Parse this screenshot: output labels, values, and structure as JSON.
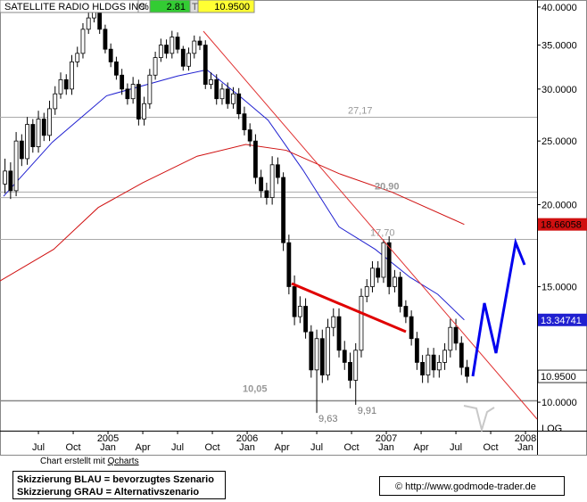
{
  "chart_data": {
    "type": "candlestick",
    "header": {
      "name": "SATELLITE RADIO HLDGS INC",
      "pct_symbol": "%",
      "change": 2.81,
      "t": "T",
      "last": {
        "value": 10.95,
        "label": "10.9500"
      }
    },
    "log_scale": true,
    "scale_label": "LOG",
    "ylim": [
      9.05,
      41.0
    ],
    "yticks": [
      {
        "value": 40,
        "label": "40.0000"
      },
      {
        "value": 35,
        "label": "35.0000"
      },
      {
        "value": 30,
        "label": "30.0000"
      },
      {
        "value": 25,
        "label": "25.0000"
      },
      {
        "value": 20,
        "label": "20.0000"
      },
      {
        "value": 15,
        "label": "15.0000"
      },
      {
        "value": 10,
        "label": "10.0000"
      }
    ],
    "xlim": [
      2004.224,
      2008.083
    ],
    "xticks": [
      {
        "value": 2004.5,
        "label": "Jul"
      },
      {
        "value": 2004.75,
        "label": "Oct"
      },
      {
        "value": 2005.0,
        "label": "Jan"
      },
      {
        "value": 2005.25,
        "label": "Apr"
      },
      {
        "value": 2005.5,
        "label": "Jul"
      },
      {
        "value": 2005.75,
        "label": "Oct"
      },
      {
        "value": 2006.0,
        "label": "Jan"
      },
      {
        "value": 2006.25,
        "label": "Apr"
      },
      {
        "value": 2006.5,
        "label": "Jul"
      },
      {
        "value": 2006.75,
        "label": "Oct"
      },
      {
        "value": 2007.0,
        "label": "Jan"
      },
      {
        "value": 2007.25,
        "label": "Apr"
      },
      {
        "value": 2007.5,
        "label": "Jul"
      },
      {
        "value": 2007.75,
        "label": "Oct"
      },
      {
        "value": 2008.0,
        "label": "Jan"
      }
    ],
    "xyears": [
      2005,
      2006,
      2007,
      2008
    ],
    "candles": {
      "up_color": "#ffffff",
      "down_color": "#000000",
      "x": [
        2004.26,
        2004.3,
        2004.34,
        2004.38,
        2004.42,
        2004.46,
        2004.5,
        2004.54,
        2004.58,
        2004.62,
        2004.66,
        2004.7,
        2004.74,
        2004.78,
        2004.82,
        2004.86,
        2004.9,
        2004.94,
        2004.98,
        2005.02,
        2005.06,
        2005.1,
        2005.14,
        2005.18,
        2005.22,
        2005.26,
        2005.3,
        2005.34,
        2005.38,
        2005.42,
        2005.46,
        2005.5,
        2005.54,
        2005.58,
        2005.62,
        2005.66,
        2005.7,
        2005.74,
        2005.78,
        2005.82,
        2005.86,
        2005.9,
        2005.94,
        2005.98,
        2006.02,
        2006.06,
        2006.1,
        2006.14,
        2006.18,
        2006.22,
        2006.26,
        2006.3,
        2006.34,
        2006.38,
        2006.42,
        2006.46,
        2006.5,
        2006.54,
        2006.58,
        2006.62,
        2006.66,
        2006.7,
        2006.74,
        2006.78,
        2006.82,
        2006.86,
        2006.9,
        2006.94,
        2006.98,
        2007.02,
        2007.06,
        2007.1,
        2007.14,
        2007.18,
        2007.22,
        2007.26,
        2007.3,
        2007.34,
        2007.38,
        2007.42,
        2007.46,
        2007.5,
        2007.54,
        2007.58
      ],
      "open": [
        21.5,
        22.5,
        21.0,
        25.0,
        23.5,
        26.5,
        24.5,
        27.0,
        25.5,
        28.0,
        29.5,
        31.0,
        30.0,
        33.0,
        34.0,
        37.0,
        38.5,
        39.5,
        37.0,
        34.5,
        33.0,
        31.5,
        30.0,
        29.0,
        30.5,
        27.0,
        28.5,
        31.5,
        33.5,
        35.0,
        34.0,
        36.0,
        34.5,
        32.5,
        34.0,
        35.5,
        35.0,
        30.5,
        31.0,
        29.0,
        30.0,
        28.5,
        29.5,
        27.5,
        26.0,
        25.0,
        22.0,
        21.0,
        20.5,
        23.0,
        22.0,
        17.5,
        15.0,
        13.5,
        14.0,
        12.8,
        11.2,
        12.5,
        11.0,
        13.0,
        13.5,
        12.0,
        11.5,
        10.8,
        12.0,
        14.5,
        15.0,
        16.0,
        15.5,
        17.5,
        15.0,
        15.5,
        14.0,
        13.5,
        12.5,
        11.5,
        11.0,
        11.8,
        11.2,
        11.5,
        12.0,
        13.0,
        12.3,
        11.3
      ],
      "high": [
        23.5,
        23.2,
        25.8,
        25.6,
        27.2,
        27.0,
        27.8,
        27.6,
        28.8,
        30.3,
        31.8,
        31.6,
        33.8,
        34.8,
        37.8,
        39.3,
        40.2,
        39.8,
        37.6,
        35.2,
        33.6,
        32.2,
        30.6,
        31.3,
        31.0,
        29.2,
        32.2,
        34.2,
        35.8,
        35.7,
        36.8,
        36.6,
        34.9,
        34.7,
        36.2,
        36.1,
        35.6,
        31.8,
        31.6,
        30.6,
        30.7,
        30.2,
        30.1,
        28.2,
        26.6,
        25.6,
        22.6,
        21.6,
        23.7,
        23.6,
        22.4,
        18.0,
        15.6,
        14.5,
        14.4,
        13.1,
        12.9,
        12.9,
        13.4,
        13.9,
        13.9,
        12.4,
        11.9,
        12.3,
        14.9,
        15.4,
        16.4,
        16.4,
        17.7,
        17.9,
        15.9,
        15.8,
        14.3,
        13.8,
        12.8,
        11.8,
        12.1,
        12.1,
        11.8,
        12.3,
        13.4,
        13.4,
        12.6,
        11.6
      ],
      "low": [
        20.8,
        20.4,
        20.6,
        22.9,
        23.0,
        24.0,
        24.0,
        25.0,
        25.0,
        27.4,
        29.0,
        29.4,
        29.4,
        32.4,
        33.4,
        36.4,
        37.9,
        36.4,
        34.0,
        32.4,
        31.0,
        29.4,
        28.4,
        28.5,
        26.4,
        26.4,
        28.0,
        31.0,
        33.0,
        33.4,
        33.4,
        34.0,
        32.0,
        32.0,
        33.4,
        34.4,
        30.0,
        30.0,
        28.4,
        28.4,
        28.0,
        28.0,
        27.0,
        25.5,
        24.5,
        21.5,
        20.5,
        20.0,
        20.0,
        21.5,
        17.0,
        14.6,
        13.1,
        13.2,
        12.5,
        10.9,
        9.63,
        10.7,
        10.8,
        12.6,
        11.7,
        11.2,
        10.5,
        9.91,
        11.7,
        14.2,
        14.7,
        15.2,
        15.2,
        14.6,
        14.7,
        13.7,
        13.2,
        12.2,
        11.2,
        10.7,
        10.7,
        10.9,
        10.9,
        11.2,
        11.7,
        12.0,
        11.0,
        10.7
      ],
      "close": [
        22.5,
        21.0,
        25.0,
        23.5,
        26.5,
        24.5,
        27.0,
        25.5,
        28.0,
        29.5,
        31.0,
        30.0,
        33.0,
        34.0,
        37.0,
        38.5,
        39.5,
        37.0,
        34.5,
        33.0,
        31.5,
        30.0,
        29.0,
        30.5,
        27.0,
        28.5,
        31.5,
        33.5,
        35.0,
        34.0,
        36.0,
        34.5,
        32.5,
        34.0,
        35.5,
        35.0,
        30.5,
        31.0,
        29.0,
        30.0,
        28.5,
        29.5,
        27.5,
        26.0,
        25.0,
        22.0,
        21.0,
        20.5,
        23.0,
        22.0,
        17.5,
        15.0,
        13.5,
        14.0,
        12.8,
        11.2,
        12.5,
        11.0,
        13.0,
        13.5,
        12.0,
        11.5,
        10.8,
        12.0,
        14.5,
        15.0,
        16.0,
        15.5,
        17.5,
        15.0,
        15.5,
        14.0,
        13.5,
        12.5,
        11.5,
        11.0,
        11.8,
        11.2,
        11.5,
        12.0,
        13.0,
        12.3,
        11.3,
        10.95
      ]
    },
    "moving_averages": [
      {
        "color": "#2020d0",
        "x": [
          2004.25,
          2004.6,
          2004.99,
          2005.5,
          2005.71,
          2005.96,
          2006.15,
          2006.4,
          2006.66,
          2006.92,
          2007.17,
          2007.37,
          2007.56
        ],
        "values": [
          20.6,
          24.9,
          29.3,
          31.4,
          32.1,
          29.1,
          26.9,
          22.6,
          18.5,
          17.1,
          15.5,
          14.6,
          13.34741
        ],
        "last_label": "13.34741",
        "label_color": "#ffffff"
      },
      {
        "color": "#d01010",
        "x": [
          2004.224,
          2004.61,
          2004.93,
          2005.25,
          2005.64,
          2005.99,
          2006.28,
          2006.66,
          2007.04,
          2007.56
        ],
        "values": [
          15.3,
          17.1,
          19.8,
          21.6,
          23.7,
          24.7,
          24.2,
          22.3,
          20.9,
          18.66058
        ],
        "last_label": "18.66058",
        "label_color": "#000000"
      }
    ],
    "levels": [
      {
        "value": 27.17,
        "label": "27,17"
      },
      {
        "value": 20.9,
        "label": "20,90"
      },
      {
        "value": 20.5
      },
      {
        "value": 17.7,
        "label": "17,70"
      },
      {
        "value": 10.05,
        "label": "10,05"
      }
    ],
    "low_labels": [
      {
        "x": 2006.5,
        "value": 9.63,
        "label": "9,63"
      },
      {
        "x": 2006.78,
        "value": 9.91,
        "label": "9,91"
      }
    ],
    "credit_prefix": "Chart erstellt mit",
    "credit_link": "Qcharts",
    "legend_lines": [
      "Skizzierung BLAU = bevorzugtes Szenario",
      "Skizzierung GRAU = Alternativszenario"
    ],
    "copyright": "© http://www.godmode-trader.de"
  }
}
